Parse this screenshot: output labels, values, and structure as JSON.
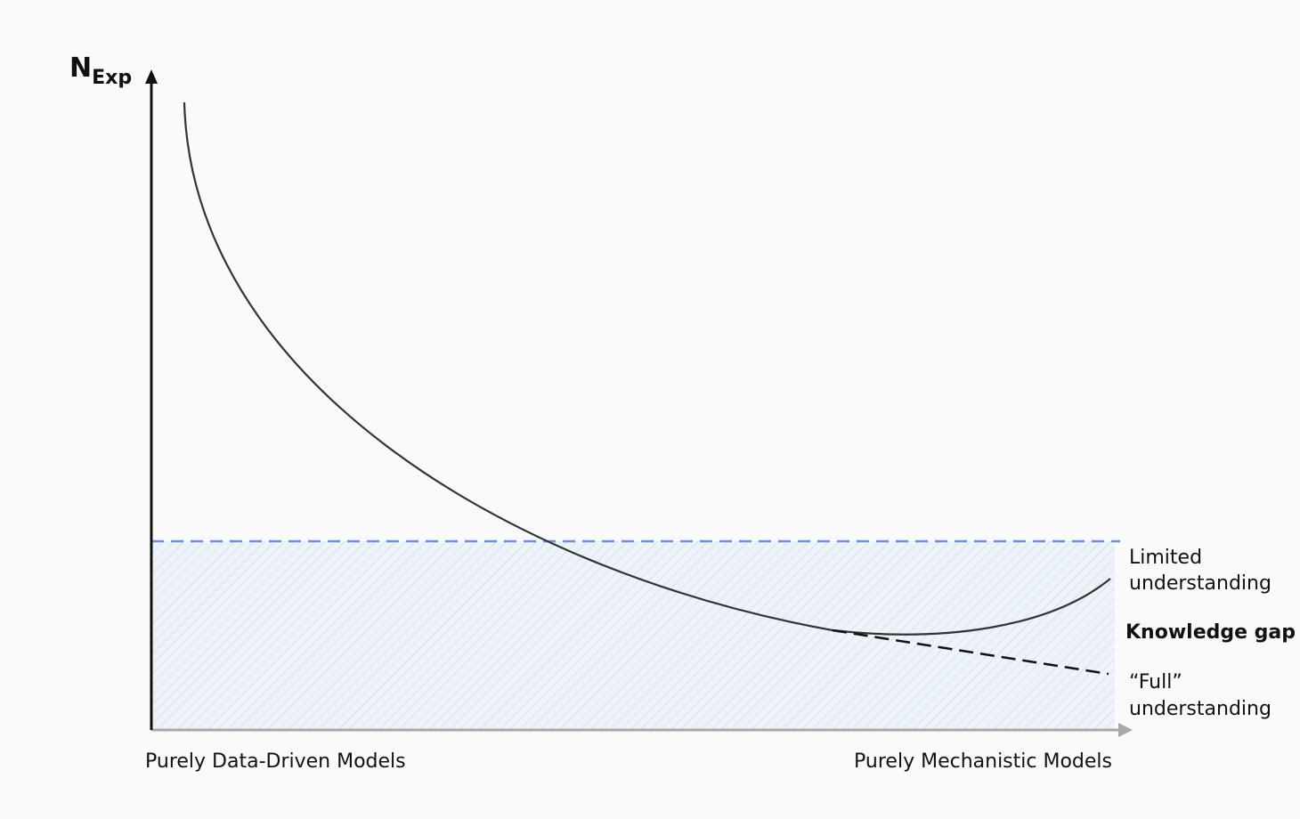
{
  "y_axis": {
    "label": "N",
    "subscript": "Exp"
  },
  "x_axis": {
    "left_label": "Purely Data-Driven Models",
    "right_label": "Purely Mechanistic Models"
  },
  "annotations": {
    "limited": [
      "Limited",
      "understanding"
    ],
    "gap": "Knowledge gap",
    "full": [
      "“Full”",
      "understanding"
    ]
  }
}
